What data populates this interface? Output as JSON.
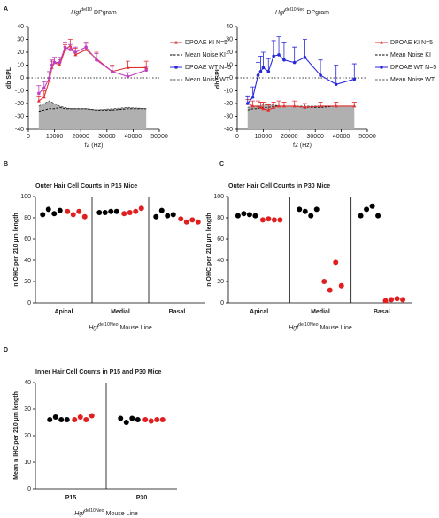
{
  "chart_data": [
    {
      "type": "line",
      "panel": "A",
      "title_italic": "Hgf",
      "title_sup": "del10",
      "title": "DPgram",
      "xlabel": "f2 (Hz)",
      "ylabel": "db SPL",
      "x": [
        4000,
        6000,
        8000,
        9000,
        10000,
        12000,
        14000,
        16000,
        18000,
        22000,
        26000,
        32000,
        38000,
        45000
      ],
      "xlim": [
        0,
        50000
      ],
      "xticks": [
        0,
        10000,
        20000,
        30000,
        40000,
        50000
      ],
      "ylim": [
        -40,
        40
      ],
      "yticks": [
        -40,
        -30,
        -20,
        -10,
        0,
        10,
        20,
        30,
        40
      ],
      "series": [
        {
          "name": "DPOAE KI N=5",
          "color": "#e03030",
          "marker": "triangle",
          "values": [
            -18,
            -15,
            -2,
            8,
            12,
            10,
            22,
            25,
            18,
            22,
            15,
            5,
            8,
            8
          ],
          "errors": [
            4,
            5,
            6,
            5,
            4,
            4,
            4,
            5,
            5,
            5,
            5,
            5,
            5,
            5
          ]
        },
        {
          "name": "Mean Noise KI",
          "color": "#000000",
          "dash": true,
          "values": [
            -26,
            -25,
            -24,
            -24,
            -24,
            -23,
            -24,
            -24,
            -24,
            -24,
            -25,
            -25,
            -24,
            -24
          ]
        },
        {
          "name": "DPOAE WT N=5",
          "color": "#c040c0",
          "legend_color": "#2828d8",
          "marker": "circle",
          "values": [
            -12,
            -8,
            0,
            10,
            12,
            12,
            24,
            22,
            20,
            24,
            14,
            5,
            1,
            6
          ],
          "errors": [
            6,
            5,
            5,
            4,
            4,
            4,
            4,
            4,
            4,
            4,
            5,
            4,
            3,
            3
          ]
        },
        {
          "name": "Mean Noise WT",
          "color": "#555555",
          "dash": true,
          "area": "#b0b0b0",
          "values": [
            -22,
            -20,
            -18,
            -19,
            -20,
            -22,
            -23,
            -24,
            -24,
            -24,
            -25,
            -24,
            -23,
            -24
          ]
        }
      ]
    },
    {
      "type": "line",
      "title_italic": "Hgf",
      "title_sup": "del10Neo",
      "title": "DPgram",
      "xlabel": "f2 (Hz)",
      "ylabel": "db SPL",
      "x": [
        4000,
        6000,
        8000,
        9000,
        10000,
        12000,
        14000,
        16000,
        18000,
        22000,
        26000,
        32000,
        38000,
        45000
      ],
      "xlim": [
        0,
        50000
      ],
      "xticks": [
        0,
        10000,
        20000,
        30000,
        40000,
        50000
      ],
      "ylim": [
        -40,
        40
      ],
      "yticks": [
        -40,
        -30,
        -20,
        -10,
        0,
        10,
        20,
        30,
        40
      ],
      "series": [
        {
          "name": "DPOAE KI N=5",
          "color": "#e03030",
          "marker": "triangle",
          "values": [
            -20,
            -22,
            -22,
            -23,
            -24,
            -25,
            -23,
            -22,
            -22,
            -22,
            -23,
            -22,
            -22,
            -22
          ],
          "errors": [
            3,
            4,
            4,
            4,
            5,
            4,
            4,
            4,
            3,
            4,
            3,
            3,
            3,
            3
          ]
        },
        {
          "name": "Mean Noise KI",
          "color": "#000000",
          "dash": true,
          "values": [
            -25,
            -24,
            -24,
            -23,
            -23,
            -23,
            -22,
            -22,
            -22,
            -22,
            -23,
            -23,
            -22,
            -22
          ]
        },
        {
          "name": "DPOAE WT N=5",
          "color": "#2828d8",
          "marker": "circle",
          "values": [
            -20,
            -15,
            2,
            5,
            8,
            5,
            17,
            18,
            14,
            12,
            16,
            2,
            -5,
            -1
          ],
          "errors": [
            6,
            8,
            10,
            12,
            12,
            10,
            12,
            14,
            14,
            12,
            14,
            12,
            15,
            12
          ]
        },
        {
          "name": "Mean Noise WT",
          "color": "#555555",
          "dash": true,
          "area": "#b0b0b0",
          "values": [
            -23,
            -22,
            -22,
            -22,
            -21,
            -21,
            -21,
            -22,
            -22,
            -22,
            -22,
            -22,
            -22,
            -22
          ]
        }
      ]
    },
    {
      "type": "dot",
      "panel": "B",
      "title": "Outer Hair Cell Counts in P15 Mice",
      "ylabel": "n OHC per 210 µm length",
      "xlabel_italic": "Hgf",
      "xlabel_sup": "del10Neo",
      "xlabel": "Mouse Line",
      "categories": [
        "Apical",
        "Medial",
        "Basal"
      ],
      "ylim": [
        0,
        100
      ],
      "yticks": [
        0,
        20,
        40,
        60,
        80,
        100
      ],
      "series": [
        {
          "color": "#000000",
          "values": [
            [
              83,
              88,
              84,
              87
            ],
            [
              85,
              85,
              86,
              86
            ],
            [
              81,
              87,
              82,
              83
            ]
          ]
        },
        {
          "color": "#e02020",
          "values": [
            [
              86,
              83,
              86,
              81
            ],
            [
              84,
              85,
              86,
              89
            ],
            [
              79,
              76,
              78,
              76
            ]
          ]
        }
      ]
    },
    {
      "type": "dot",
      "panel": "C",
      "title": "Outer Hair Cell Counts in P30 Mice",
      "ylabel": "n OHC per 210 µm length",
      "xlabel_italic": "Hgf",
      "xlabel_sup": "del10Neo",
      "xlabel": "Mouse Line",
      "categories": [
        "Apical",
        "Medial",
        "Basal"
      ],
      "ylim": [
        0,
        100
      ],
      "yticks": [
        0,
        20,
        40,
        60,
        80,
        100
      ],
      "series": [
        {
          "color": "#000000",
          "values": [
            [
              82,
              84,
              83,
              82
            ],
            [
              88,
              86,
              82,
              88
            ],
            [
              82,
              88,
              91,
              82
            ]
          ]
        },
        {
          "color": "#e02020",
          "values": [
            [
              78,
              79,
              78,
              78
            ],
            [
              20,
              12,
              38,
              16
            ],
            [
              2,
              3,
              4,
              3
            ]
          ]
        }
      ]
    },
    {
      "type": "dot",
      "panel": "D",
      "title": "Inner Hair Cell Counts in P15 and P30 Mice",
      "ylabel": "Mean n IHC per 210 µm length",
      "xlabel_italic": "Hgf",
      "xlabel_sup": "del10Neo",
      "xlabel": "Mouse Line",
      "categories": [
        "P15",
        "P30"
      ],
      "ylim": [
        0,
        40
      ],
      "yticks": [
        0,
        10,
        20,
        30,
        40
      ],
      "series": [
        {
          "color": "#000000",
          "values": [
            [
              26,
              27,
              26,
              26
            ],
            [
              26.5,
              25,
              26.5,
              26
            ]
          ]
        },
        {
          "color": "#e02020",
          "values": [
            [
              26,
              27,
              26,
              27.5
            ],
            [
              26,
              25.5,
              26,
              26
            ]
          ]
        }
      ]
    }
  ]
}
